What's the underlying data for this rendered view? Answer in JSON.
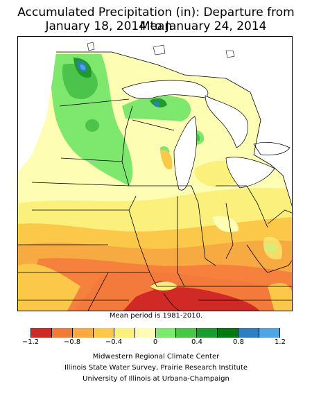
{
  "title_line1": "Accumulated Precipitation (in): Departure from Mean",
  "title_line2": "January 18, 2014 to January 24, 2014",
  "mean_note": "Mean period is 1981-2010.",
  "legend": {
    "colors": [
      "#d12a26",
      "#f47a3c",
      "#f7a942",
      "#fbc84a",
      "#fbf07b",
      "#fdfdb4",
      "#7de86d",
      "#4cc34a",
      "#1f9a2c",
      "#087810",
      "#2e7fbe",
      "#4fa6e0"
    ],
    "labels": [
      "−1.2",
      "−0.8",
      "−0.4",
      "0",
      "0.4",
      "0.8",
      "1.2"
    ],
    "label_values": [
      -1.2,
      -0.8,
      -0.4,
      0,
      0.4,
      0.8,
      1.2
    ],
    "range": [
      -1.2,
      1.2
    ]
  },
  "credits": [
    "Midwestern Regional Climate Center",
    "Illinois State Water Survey, Prairie Research Institute",
    "University of Illinois at Urbana-Champaign"
  ]
}
